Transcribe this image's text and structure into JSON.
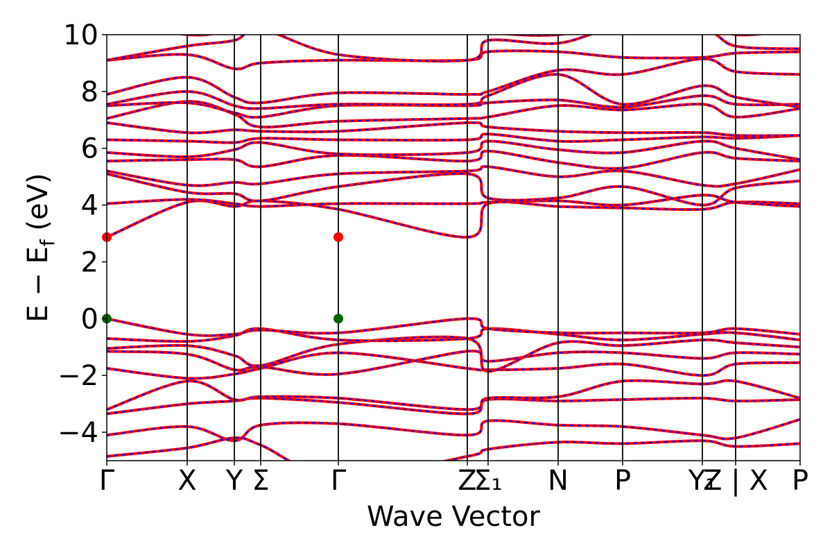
{
  "chart_data": {
    "type": "line",
    "title": "",
    "xlabel": "Wave Vector",
    "ylabel": "E − E_f (eV)",
    "ylabel_parts": {
      "main": "E − E",
      "sub": "f",
      "unit": " (eV)"
    },
    "ylim": [
      -5,
      10
    ],
    "yticks": [
      -4,
      -2,
      0,
      2,
      4,
      6,
      8,
      10
    ],
    "ytick_labels": [
      "−4",
      "−2",
      "0",
      "2",
      "4",
      "6",
      "8",
      "10"
    ],
    "xlim": [
      0,
      10
    ],
    "kpoints": [
      {
        "label": "Γ",
        "x": 0.0
      },
      {
        "label": "X",
        "x": 1.16
      },
      {
        "label": "Y",
        "x": 1.84
      },
      {
        "label": "Σ",
        "x": 2.22
      },
      {
        "label": "Γ",
        "x": 3.34
      },
      {
        "label": "Z",
        "x": 5.2
      },
      {
        "label": "Σ₁",
        "x": 5.5
      },
      {
        "label": "N",
        "x": 6.51
      },
      {
        "label": "P",
        "x": 7.44
      },
      {
        "label": "Y₁",
        "x": 8.59
      },
      {
        "label": "Z | X",
        "x": 9.07
      },
      {
        "label": "P",
        "x": 10.0
      }
    ],
    "series_colors": {
      "line_a": "#ff0000",
      "line_b": "#0000ff"
    },
    "band_edges": {
      "vbm": {
        "energy": 0.0,
        "x": [
          0.0,
          3.34
        ],
        "color": "#006400"
      },
      "cbm": {
        "energy": 2.87,
        "x": [
          0.0,
          3.34
        ],
        "color": "#ff0000"
      }
    },
    "bands": [
      [
        -4.85,
        -4.55,
        -4.2,
        -4.45,
        -5.6,
        -4.85,
        -4.6,
        -4.35,
        -4.4,
        -4.3,
        -4.5,
        -4.4
      ],
      [
        -4.1,
        -3.8,
        -4.3,
        -3.75,
        -3.7,
        -4.1,
        -3.6,
        -3.75,
        -3.8,
        -4.1,
        -4.2,
        -3.55
      ],
      [
        -3.35,
        -3.0,
        -2.9,
        -2.8,
        -2.95,
        -3.35,
        -2.85,
        -2.9,
        -2.85,
        -2.8,
        -2.9,
        -2.85
      ],
      [
        -3.2,
        -2.2,
        -2.85,
        -2.75,
        -2.8,
        -3.2,
        -2.8,
        -2.75,
        -2.2,
        -2.3,
        -2.2,
        -2.8
      ],
      [
        -1.75,
        -2.1,
        -1.95,
        -1.75,
        -1.2,
        -1.75,
        -1.8,
        -1.75,
        -1.6,
        -2.0,
        -1.6,
        -1.55
      ],
      [
        -1.15,
        -1.25,
        -1.8,
        -1.7,
        -1.95,
        -1.15,
        -1.5,
        -1.2,
        -1.2,
        -1.4,
        -1.2,
        -1.25
      ],
      [
        -1.05,
        -0.95,
        -1.3,
        -1.65,
        -0.9,
        -0.7,
        -1.85,
        -0.85,
        -0.95,
        -0.75,
        -0.85,
        -1.0
      ],
      [
        -0.7,
        -0.8,
        -0.6,
        -0.35,
        -0.75,
        -0.7,
        -0.35,
        -0.55,
        -0.75,
        -0.55,
        -0.5,
        -0.75
      ],
      [
        0.0,
        -0.55,
        -0.55,
        -0.4,
        -0.5,
        0.0,
        -0.35,
        -0.5,
        -0.5,
        -0.5,
        -0.35,
        -0.55
      ],
      [
        2.87,
        4.1,
        3.95,
        4.15,
        3.85,
        2.87,
        4.05,
        3.95,
        3.9,
        3.85,
        4.1,
        4.05
      ],
      [
        4.05,
        4.2,
        4.05,
        3.95,
        4.05,
        4.05,
        4.1,
        4.15,
        4.0,
        4.35,
        4.1,
        3.95
      ],
      [
        5.1,
        4.45,
        4.4,
        4.15,
        4.65,
        5.1,
        4.25,
        4.25,
        4.65,
        4.0,
        4.6,
        4.85
      ],
      [
        5.2,
        4.7,
        4.8,
        4.75,
        5.1,
        5.2,
        5.35,
        5.0,
        5.2,
        4.7,
        4.75,
        5.25
      ],
      [
        5.55,
        5.6,
        5.6,
        5.35,
        5.75,
        5.55,
        5.9,
        5.5,
        5.3,
        5.85,
        5.65,
        5.55
      ],
      [
        5.85,
        5.7,
        5.95,
        6.2,
        5.8,
        5.85,
        6.25,
        5.95,
        5.85,
        6.25,
        6.0,
        5.6
      ],
      [
        6.3,
        6.25,
        6.2,
        6.35,
        6.3,
        6.3,
        6.5,
        6.25,
        6.3,
        6.4,
        6.35,
        6.45
      ],
      [
        6.9,
        6.55,
        6.65,
        6.6,
        6.6,
        6.9,
        6.75,
        6.6,
        6.55,
        6.55,
        6.45,
        6.45
      ],
      [
        7.05,
        7.65,
        7.2,
        6.75,
        6.95,
        7.05,
        7.1,
        7.5,
        7.35,
        7.55,
        7.1,
        7.4
      ],
      [
        7.5,
        7.6,
        7.25,
        7.1,
        7.5,
        7.5,
        7.6,
        7.7,
        7.45,
        7.85,
        7.55,
        7.55
      ],
      [
        7.55,
        8.0,
        7.5,
        7.4,
        7.55,
        7.55,
        7.85,
        8.6,
        7.55,
        8.2,
        7.8,
        7.45
      ],
      [
        7.9,
        8.5,
        7.8,
        7.6,
        7.95,
        7.9,
        8.0,
        8.75,
        8.6,
        9.15,
        8.7,
        8.6
      ],
      [
        9.1,
        9.3,
        8.8,
        9.0,
        9.1,
        9.1,
        9.4,
        9.4,
        9.2,
        9.2,
        9.35,
        9.4
      ],
      [
        9.1,
        9.6,
        9.8,
        10.2,
        9.3,
        9.1,
        9.8,
        9.7,
        10.3,
        10.2,
        9.6,
        9.5
      ],
      [
        10.6,
        10.0,
        10.2,
        10.6,
        10.3,
        10.5,
        10.1,
        10.0,
        10.5,
        10.6,
        10.0,
        10.2
      ]
    ]
  }
}
